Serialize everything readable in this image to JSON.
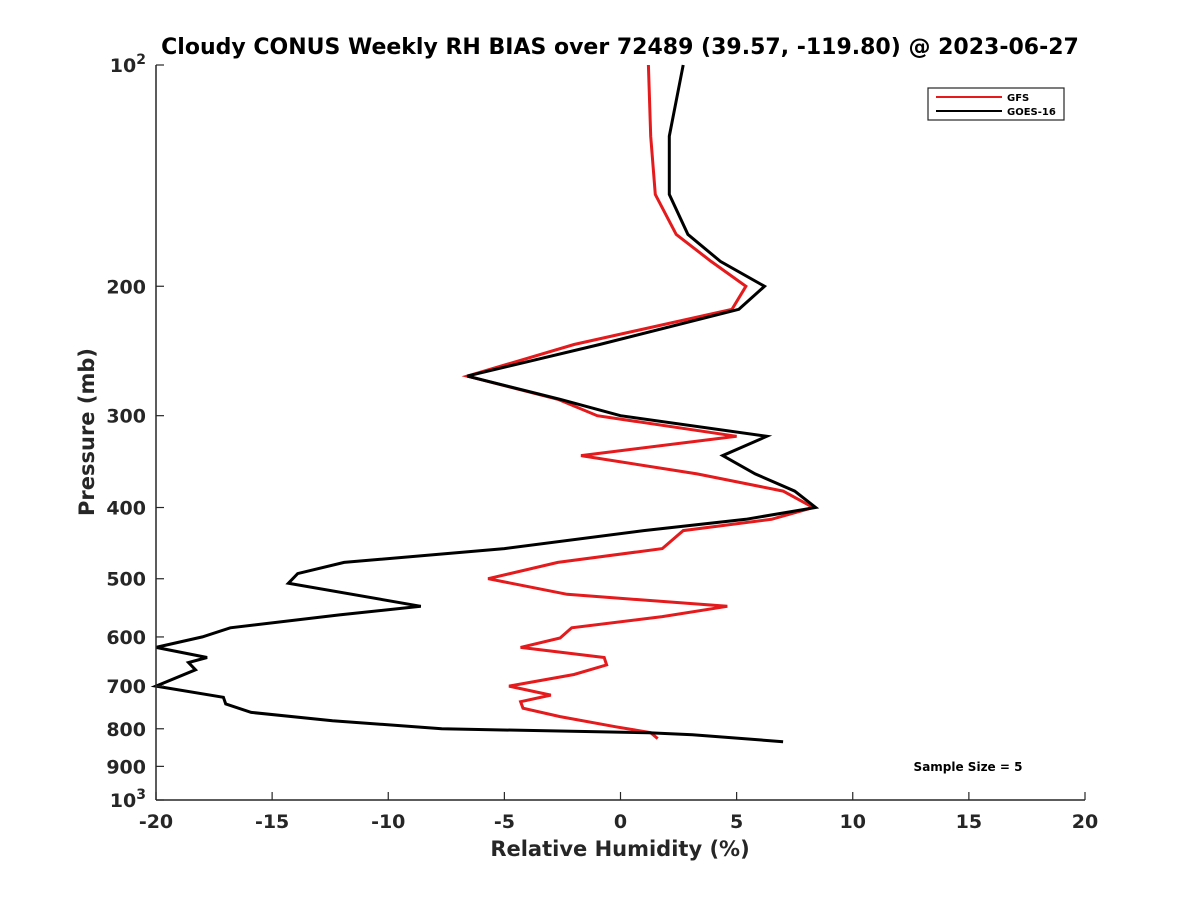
{
  "chart_data": {
    "type": "line",
    "title": "Cloudy CONUS Weekly RH BIAS over 72489 (39.57, -119.80) @ 2023-06-27",
    "xlabel": "Relative Humidity (%)",
    "ylabel": "Pressure (mb)",
    "xlim": [
      -20,
      20
    ],
    "ylim": [
      100,
      1000
    ],
    "y_scale": "log",
    "y_reversed": true,
    "xticks": [
      -20,
      -15,
      -10,
      -5,
      0,
      5,
      10,
      15,
      20
    ],
    "xtick_labels": [
      "-20",
      "-15",
      "-10",
      "-5",
      "0",
      "5",
      "10",
      "15",
      "20"
    ],
    "yticks": [
      {
        "value": 100,
        "base": "10",
        "exp": "2"
      },
      {
        "value": 200,
        "label": "200"
      },
      {
        "value": 300,
        "label": "300"
      },
      {
        "value": 400,
        "label": "400"
      },
      {
        "value": 500,
        "label": "500"
      },
      {
        "value": 600,
        "label": "600"
      },
      {
        "value": 700,
        "label": "700"
      },
      {
        "value": 800,
        "label": "800"
      },
      {
        "value": 900,
        "label": "900"
      },
      {
        "value": 1000,
        "base": "10",
        "exp": "3"
      }
    ],
    "grid": false,
    "legend_position": "top-right",
    "annotation": "Sample Size = 5",
    "series": [
      {
        "name": "GFS",
        "color": "#e41a1c",
        "points": [
          [
            1.2,
            100
          ],
          [
            1.3,
            125
          ],
          [
            1.5,
            150
          ],
          [
            2.4,
            170
          ],
          [
            3.9,
            185
          ],
          [
            5.4,
            200
          ],
          [
            4.8,
            215
          ],
          [
            -2.0,
            240
          ],
          [
            -6.6,
            265
          ],
          [
            -2.7,
            285
          ],
          [
            -1.0,
            300
          ],
          [
            5.0,
            320
          ],
          [
            -1.7,
            340
          ],
          [
            3.3,
            360
          ],
          [
            7.0,
            380
          ],
          [
            8.3,
            400
          ],
          [
            6.5,
            415
          ],
          [
            2.7,
            430
          ],
          [
            1.8,
            455
          ],
          [
            -2.7,
            475
          ],
          [
            -5.7,
            500
          ],
          [
            -2.3,
            525
          ],
          [
            4.6,
            545
          ],
          [
            1.8,
            563
          ],
          [
            -2.1,
            583
          ],
          [
            -2.6,
            602
          ],
          [
            -4.3,
            620
          ],
          [
            -0.7,
            640
          ],
          [
            -0.6,
            655
          ],
          [
            -2.0,
            675
          ],
          [
            -4.8,
            700
          ],
          [
            -3.0,
            720
          ],
          [
            -4.3,
            735
          ],
          [
            -4.2,
            750
          ],
          [
            -2.6,
            770
          ],
          [
            -0.2,
            795
          ],
          [
            1.3,
            810
          ],
          [
            1.6,
            825
          ]
        ]
      },
      {
        "name": "GOES-16",
        "color": "#000000",
        "points": [
          [
            2.7,
            100
          ],
          [
            2.1,
            125
          ],
          [
            2.1,
            150
          ],
          [
            2.9,
            170
          ],
          [
            4.3,
            185
          ],
          [
            6.2,
            200
          ],
          [
            5.1,
            215
          ],
          [
            -0.9,
            240
          ],
          [
            -6.6,
            265
          ],
          [
            -2.6,
            285
          ],
          [
            0.0,
            300
          ],
          [
            6.3,
            320
          ],
          [
            4.4,
            340
          ],
          [
            5.8,
            360
          ],
          [
            7.5,
            380
          ],
          [
            8.4,
            400
          ],
          [
            5.4,
            415
          ],
          [
            1.0,
            430
          ],
          [
            -5.0,
            455
          ],
          [
            -11.9,
            475
          ],
          [
            -13.9,
            492
          ],
          [
            -14.3,
            507
          ],
          [
            -8.6,
            545
          ],
          [
            -12.1,
            560
          ],
          [
            -16.8,
            583
          ],
          [
            -18.0,
            600
          ],
          [
            -20.0,
            620
          ],
          [
            -17.8,
            640
          ],
          [
            -18.6,
            650
          ],
          [
            -18.3,
            665
          ],
          [
            -20.0,
            700
          ],
          [
            -17.1,
            725
          ],
          [
            -17.0,
            740
          ],
          [
            -15.9,
            760
          ],
          [
            -12.4,
            780
          ],
          [
            -7.7,
            800
          ],
          [
            1.2,
            810
          ],
          [
            3.1,
            815
          ],
          [
            7.0,
            833
          ]
        ]
      }
    ]
  }
}
